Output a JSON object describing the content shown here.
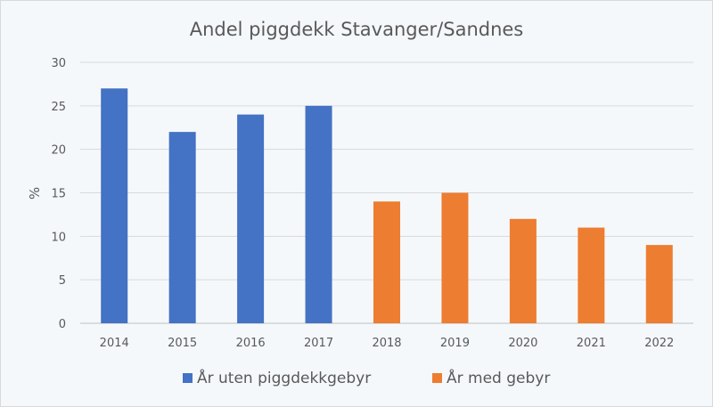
{
  "chart_data": {
    "type": "bar",
    "title": "Andel piggdekk Stavanger/Sandnes",
    "xlabel": "",
    "ylabel": "%",
    "ylim": [
      0,
      30
    ],
    "yticks": [
      0,
      5,
      10,
      15,
      20,
      25,
      30
    ],
    "grid": true,
    "legend_placement": "bottom",
    "categories": [
      "2014",
      "2015",
      "2016",
      "2017",
      "2018",
      "2019",
      "2020",
      "2021",
      "2022"
    ],
    "series": [
      {
        "name": "År uten piggdekkgebyr",
        "color": "#4472c4",
        "values": [
          27,
          22,
          24,
          25,
          null,
          null,
          null,
          null,
          null
        ]
      },
      {
        "name": "År med gebyr",
        "color": "#ed7d31",
        "values": [
          null,
          null,
          null,
          null,
          14,
          15,
          12,
          11,
          9
        ]
      }
    ]
  }
}
